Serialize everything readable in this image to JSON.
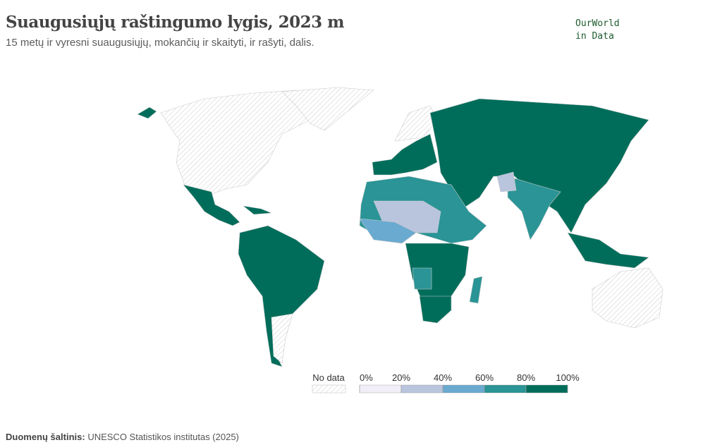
{
  "header": {
    "title": "Suaugusiųjų raštingumo lygis, 2023 m",
    "subtitle": "15 metų ir vyresni suaugusiųjų, mokančių ir skaityti, ir rašyti, dalis.",
    "logo": [
      "OurWorld",
      "in Data"
    ]
  },
  "legend": {
    "no_data": "No data",
    "ticks": [
      {
        "value": 0,
        "label": "0%"
      },
      {
        "value": 20,
        "label": "20%"
      },
      {
        "value": 40,
        "label": "40%"
      },
      {
        "value": 60,
        "label": "60%"
      },
      {
        "value": 80,
        "label": "80%"
      },
      {
        "value": 100,
        "label": "100%"
      }
    ],
    "colors": [
      "#f2eef7",
      "#b9c4dd",
      "#6aaad0",
      "#2a9496",
      "#006d5b"
    ]
  },
  "footer": {
    "source_label": "Duomenų šaltinis:",
    "source": "UNESCO Statistikos institutas (2025)"
  }
}
